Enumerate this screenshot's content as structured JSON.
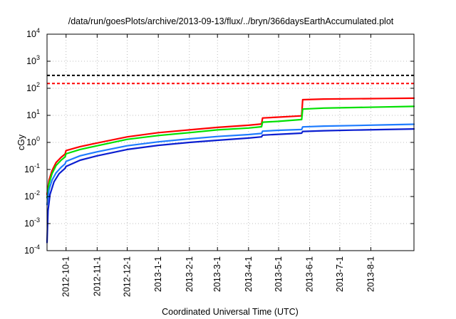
{
  "chart_data": {
    "type": "line",
    "title": "/data/run/goesPlots/archive/2013-09-13/flux/../bryn/366daysEarthAccumulated.plot",
    "xlabel": "Coordinated Universal Time (UTC)",
    "ylabel": "cGy",
    "yscale": "log",
    "ylim": [
      0.0001,
      10000
    ],
    "xlim": [
      "2012-09-12",
      "2013-09-13"
    ],
    "grid": true,
    "legend": "none",
    "y_ticks": [
      {
        "value": 0.0001,
        "base": "10",
        "exp": "-4"
      },
      {
        "value": 0.001,
        "base": "10",
        "exp": "-3"
      },
      {
        "value": 0.01,
        "base": "10",
        "exp": "-2"
      },
      {
        "value": 0.1,
        "base": "10",
        "exp": "-1"
      },
      {
        "value": 1,
        "base": "10",
        "exp": "0"
      },
      {
        "value": 10,
        "base": "10",
        "exp": "1"
      },
      {
        "value": 100,
        "base": "10",
        "exp": "2"
      },
      {
        "value": 1000,
        "base": "10",
        "exp": "3"
      },
      {
        "value": 10000,
        "base": "10",
        "exp": "4"
      }
    ],
    "x_ticks": [
      {
        "date": "2012-10-01",
        "label": "2012-10-1"
      },
      {
        "date": "2012-11-01",
        "label": "2012-11-1"
      },
      {
        "date": "2012-12-01",
        "label": "2012-12-1"
      },
      {
        "date": "2013-01-01",
        "label": "2013-1-1"
      },
      {
        "date": "2013-02-01",
        "label": "2013-2-1"
      },
      {
        "date": "2013-03-01",
        "label": "2013-3-1"
      },
      {
        "date": "2013-04-01",
        "label": "2013-4-1"
      },
      {
        "date": "2013-05-01",
        "label": "2013-5-1"
      },
      {
        "date": "2013-06-01",
        "label": "2013-6-1"
      },
      {
        "date": "2013-07-01",
        "label": "2013-7-1"
      },
      {
        "date": "2013-08-01",
        "label": "2013-8-1"
      }
    ],
    "reference_lines": [
      {
        "y": 300,
        "color": "#000000",
        "style": "dashed"
      },
      {
        "y": 150,
        "color": "#ff0000",
        "style": "dashed"
      }
    ],
    "series": [
      {
        "color": "#ff0000",
        "x": [
          "2012-09-12",
          "2012-09-14",
          "2012-09-17",
          "2012-09-21",
          "2012-09-26",
          "2012-09-30",
          "2012-10-01",
          "2012-10-15",
          "2012-11-01",
          "2012-12-01",
          "2013-01-01",
          "2013-02-01",
          "2013-03-01",
          "2013-04-01",
          "2013-04-14",
          "2013-04-15",
          "2013-05-01",
          "2013-05-24",
          "2013-05-25",
          "2013-06-15",
          "2013-07-15",
          "2013-08-15",
          "2013-09-13"
        ],
        "y": [
          0.012,
          0.04,
          0.09,
          0.18,
          0.28,
          0.37,
          0.5,
          0.7,
          0.95,
          1.6,
          2.3,
          2.9,
          3.6,
          4.3,
          4.8,
          8.0,
          8.6,
          9.6,
          38,
          40,
          41,
          42,
          43
        ]
      },
      {
        "color": "#00e000",
        "x": [
          "2012-09-12",
          "2012-09-14",
          "2012-09-17",
          "2012-09-21",
          "2012-09-26",
          "2012-09-30",
          "2012-10-01",
          "2012-10-15",
          "2012-11-01",
          "2012-12-01",
          "2013-01-01",
          "2013-02-01",
          "2013-03-01",
          "2013-04-01",
          "2013-04-14",
          "2013-04-15",
          "2013-05-01",
          "2013-05-24",
          "2013-05-25",
          "2013-06-15",
          "2013-07-15",
          "2013-08-15",
          "2013-09-13"
        ],
        "y": [
          0.009,
          0.03,
          0.07,
          0.14,
          0.22,
          0.29,
          0.38,
          0.55,
          0.75,
          1.3,
          1.8,
          2.3,
          2.9,
          3.4,
          3.8,
          5.6,
          6.0,
          7.0,
          17,
          18.5,
          19.5,
          20.5,
          21.5
        ]
      },
      {
        "color": "#1e7cff",
        "x": [
          "2012-09-12",
          "2012-09-14",
          "2012-09-17",
          "2012-09-21",
          "2012-09-26",
          "2012-09-30",
          "2012-10-01",
          "2012-10-15",
          "2012-11-01",
          "2012-12-01",
          "2013-01-01",
          "2013-02-01",
          "2013-03-01",
          "2013-04-01",
          "2013-04-14",
          "2013-04-15",
          "2013-05-01",
          "2013-05-24",
          "2013-05-25",
          "2013-06-15",
          "2013-07-15",
          "2013-08-15",
          "2013-09-13"
        ],
        "y": [
          0.005,
          0.018,
          0.04,
          0.075,
          0.12,
          0.16,
          0.2,
          0.32,
          0.45,
          0.75,
          1.05,
          1.35,
          1.65,
          1.95,
          2.15,
          2.6,
          2.8,
          3.0,
          3.75,
          4.0,
          4.2,
          4.45,
          4.7
        ]
      },
      {
        "color": "#0a1ed0",
        "x": [
          "2012-09-12",
          "2012-09-13",
          "2012-09-15",
          "2012-09-19",
          "2012-09-24",
          "2012-09-30",
          "2012-10-01",
          "2012-10-15",
          "2012-11-01",
          "2012-12-01",
          "2013-01-01",
          "2013-02-01",
          "2013-03-01",
          "2013-04-01",
          "2013-04-14",
          "2013-04-15",
          "2013-05-01",
          "2013-05-24",
          "2013-05-25",
          "2013-06-15",
          "2013-07-15",
          "2013-08-15",
          "2013-09-13"
        ],
        "y": [
          0.0002,
          0.003,
          0.012,
          0.035,
          0.07,
          0.11,
          0.13,
          0.22,
          0.32,
          0.55,
          0.78,
          1.0,
          1.2,
          1.45,
          1.6,
          1.85,
          2.0,
          2.2,
          2.55,
          2.7,
          2.85,
          3.0,
          3.15
        ]
      }
    ]
  }
}
